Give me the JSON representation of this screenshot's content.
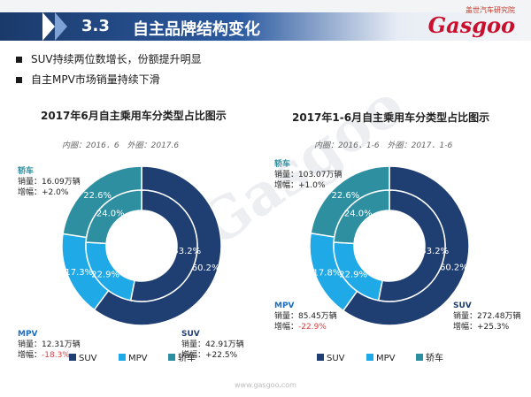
{
  "header": {
    "section": "3.3",
    "title": "自主品牌结构变化"
  },
  "logo": {
    "cn": "盖世汽车研究院",
    "word": "Gasgoo"
  },
  "bullets": [
    "SUV持续两位数增长，份额提升明显",
    "自主MPV市场销量持续下滑"
  ],
  "colors": {
    "SUV": "#1f3f73",
    "MPV": "#1fa9e6",
    "轿车": "#2e8fa0"
  },
  "left": {
    "title": "2017年6月自主乘用车分类型占比图示",
    "subtitle": "内圈：2016．6　外圈：2017.6",
    "ann": {
      "sedan": {
        "name": "轿车",
        "sales": "销量：16.09万辆",
        "growth": "增幅：+2.0%"
      },
      "mpv": {
        "name": "MPV",
        "sales": "销量：12.31万辆",
        "growth_label": "增幅：",
        "growth_value": "-18.3%"
      },
      "suv": {
        "name": "SUV",
        "sales": "销量：42.91万辆",
        "growth": "增幅：+22.5%"
      }
    }
  },
  "right": {
    "title": "2017年1-6月自主乘用车分类型占比图示",
    "subtitle": "内圈：2016．1-6　外圈：2017．1-6",
    "ann": {
      "sedan": {
        "name": "轿车",
        "sales": "销量：103.07万辆",
        "growth": "增幅：+1.0%"
      },
      "mpv": {
        "name": "MPV",
        "sales": "销量：85.45万辆",
        "growth_label": "增幅：",
        "growth_value": "-22.9%"
      },
      "suv": {
        "name": "SUV",
        "sales": "销量：272.48万辆",
        "growth": "增幅：+25.3%"
      }
    }
  },
  "watermark": "Gasgoo",
  "footer": "www.gasgoo.com",
  "chart_data": [
    {
      "type": "pie",
      "title": "2017年6月自主乘用车分类型占比图示",
      "subtitle": "内圈：2016．6　外圈：2017.6",
      "categories": [
        "SUV",
        "MPV",
        "轿车"
      ],
      "series": [
        {
          "name": "2017.6",
          "values": [
            60.2,
            17.3,
            22.6
          ],
          "labels": [
            "60.2%",
            "17.3%",
            "22.6%"
          ]
        },
        {
          "name": "2016．6",
          "values": [
            53.2,
            22.9,
            24.0
          ],
          "labels": [
            "53.2%",
            "22.9%",
            "24.0%"
          ]
        }
      ],
      "legend": "bottom"
    },
    {
      "type": "pie",
      "title": "2017年1-6月自主乘用车分类型占比图示",
      "subtitle": "内圈：2016．1-6　外圈：2017．1-6",
      "categories": [
        "SUV",
        "MPV",
        "轿车"
      ],
      "series": [
        {
          "name": "2017．1-6",
          "values": [
            60.2,
            17.8,
            22.6
          ],
          "labels": [
            "60.2%",
            "17.8%",
            "22.6%"
          ]
        },
        {
          "name": "2016．1-6",
          "values": [
            53.2,
            22.9,
            24.0
          ],
          "labels": [
            "53.2%",
            "22.9%",
            "24.0%"
          ]
        }
      ],
      "legend": "bottom"
    }
  ]
}
